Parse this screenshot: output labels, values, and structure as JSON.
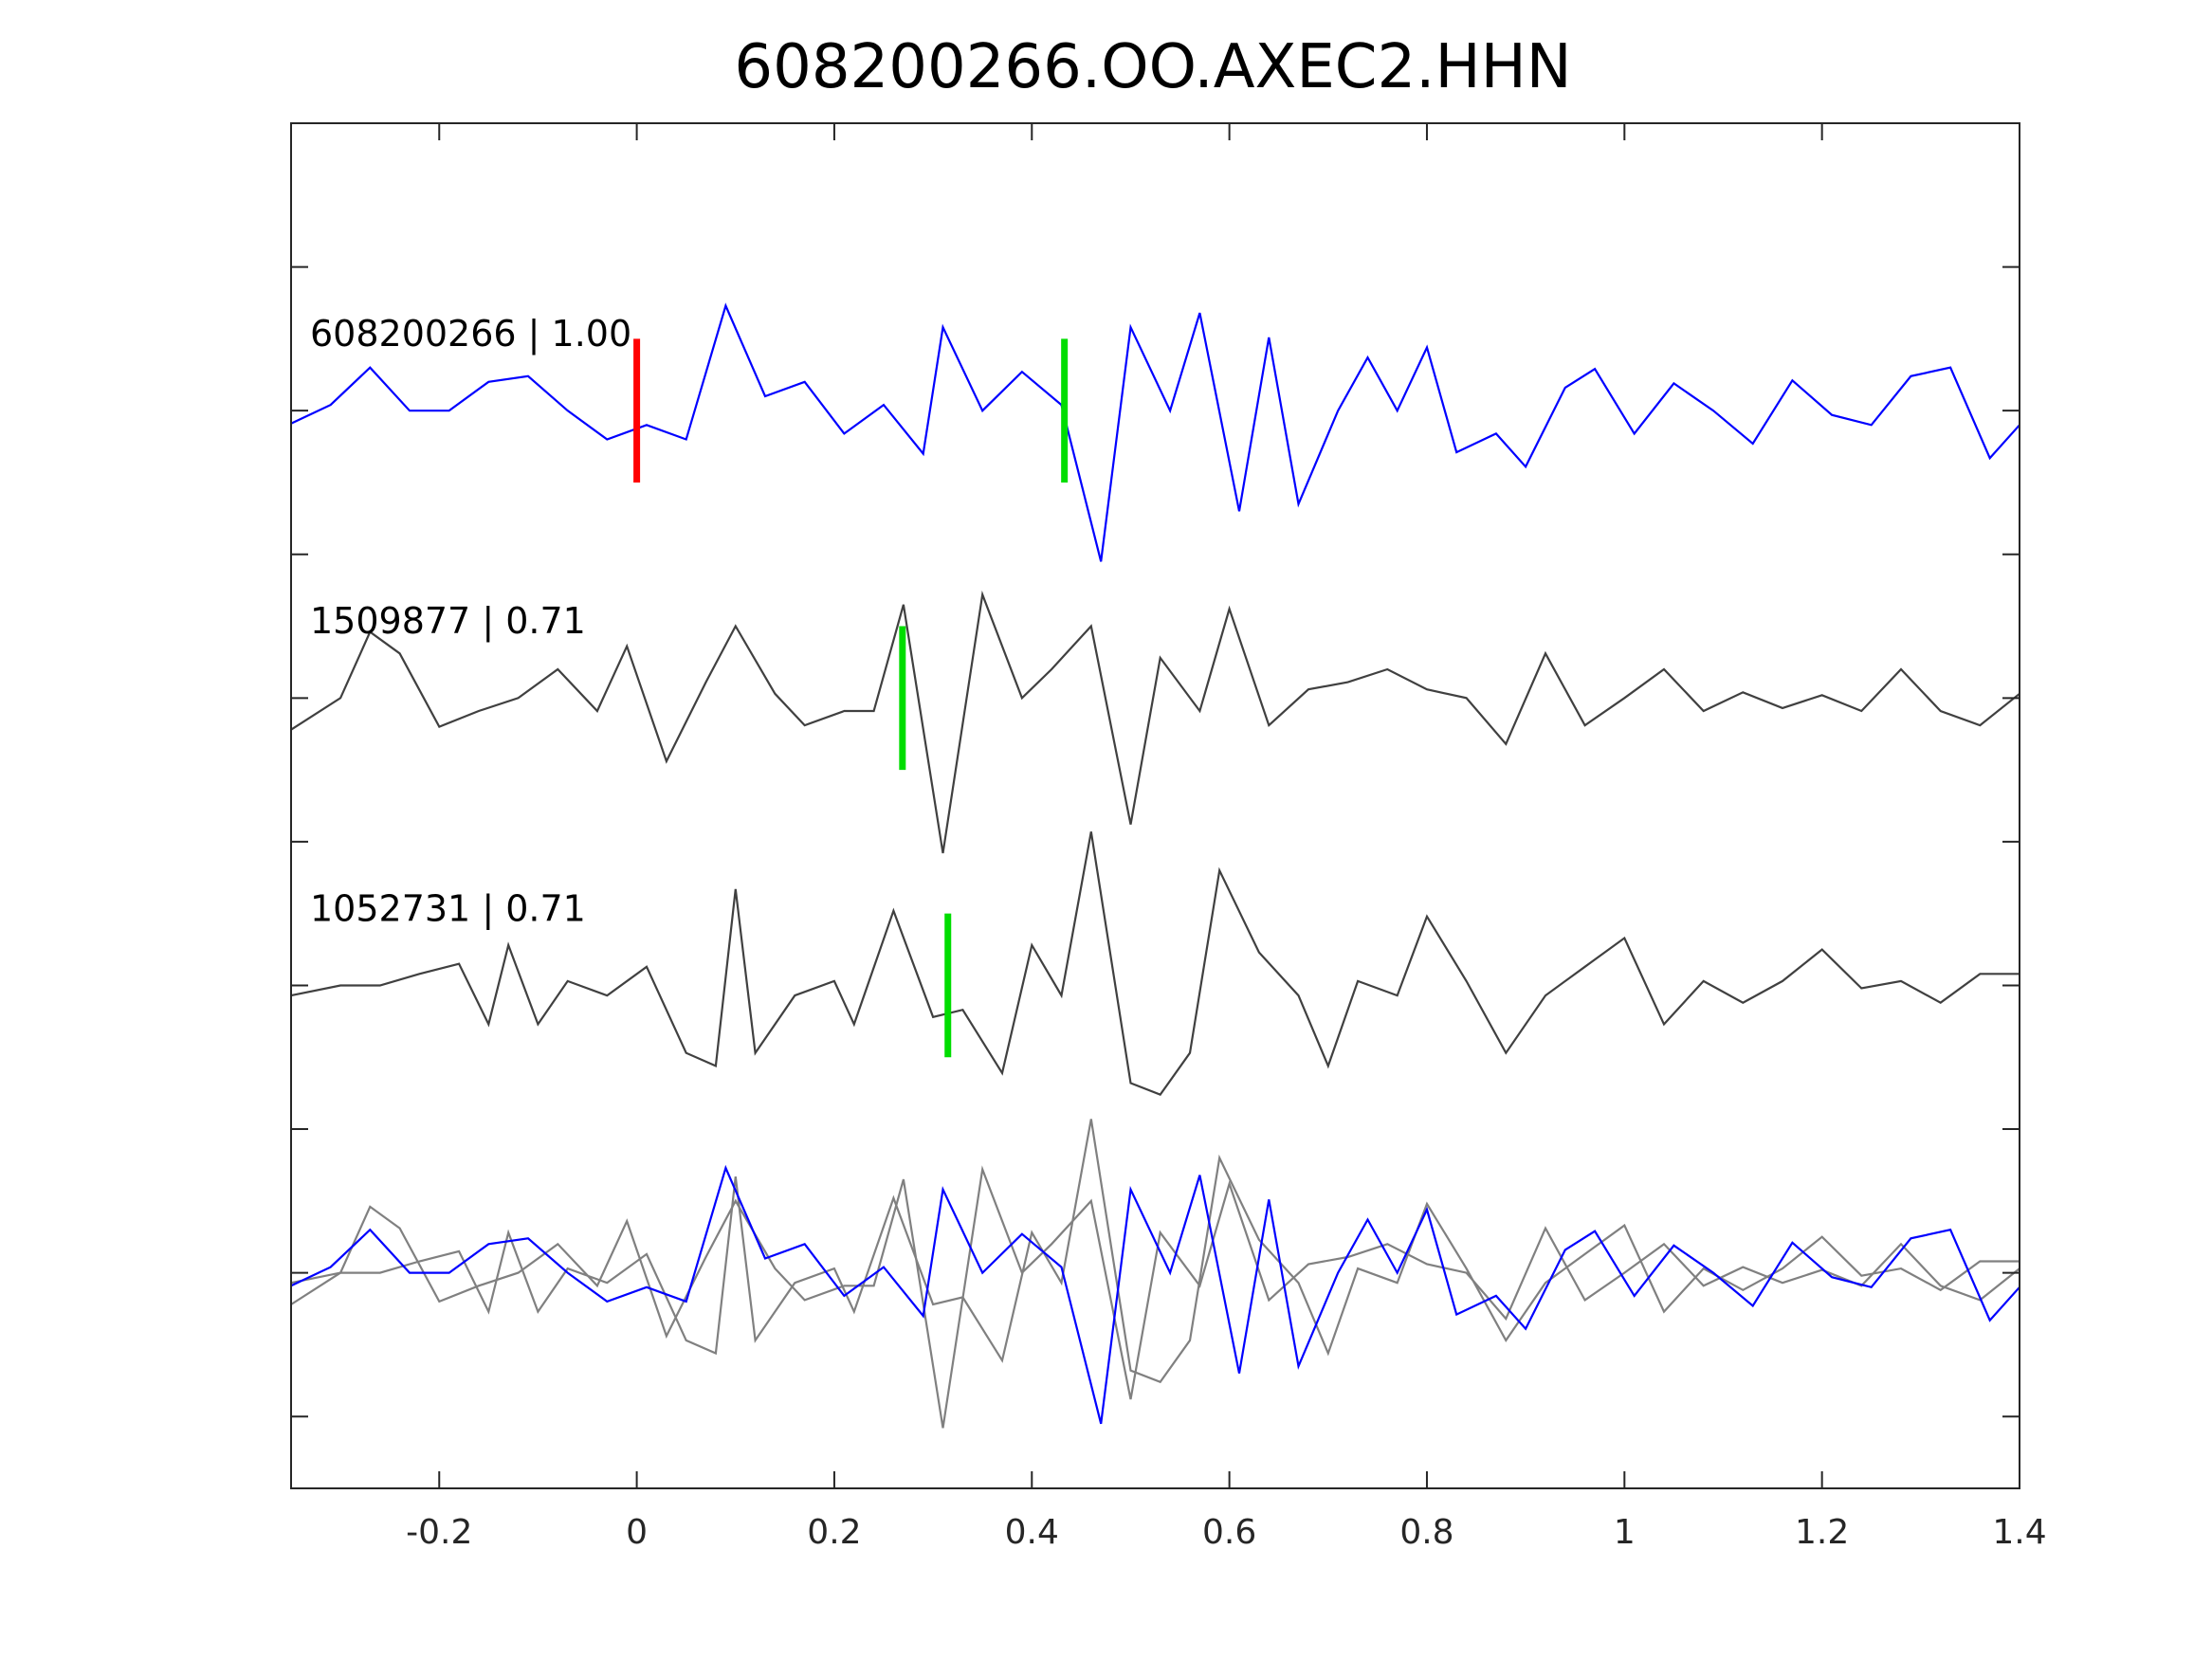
{
  "chart_data": {
    "type": "line",
    "title": "608200266.OO.AXEC2.HHN",
    "xlabel": "",
    "ylabel": "",
    "xlim": [
      -0.35,
      1.4
    ],
    "ylim": [
      -0.5,
      9
    ],
    "xticks": [
      -0.2,
      0,
      0.2,
      0.4,
      0.6,
      0.8,
      1,
      1.2,
      1.4
    ],
    "xtick_labels": [
      "-0.2",
      "0",
      "0.2",
      "0.4",
      "0.6",
      "0.8",
      "1",
      "1.2",
      "1.4"
    ],
    "yticks": [
      0,
      1,
      2,
      3,
      4,
      5,
      6,
      7,
      8
    ],
    "grid": false,
    "series": [
      {
        "name": "608200266",
        "label": "608200266 | 1.00",
        "color": "#0000ff",
        "offset": 7,
        "overlay": true,
        "x": [
          -0.35,
          -0.31,
          -0.27,
          -0.23,
          -0.19,
          -0.15,
          -0.11,
          -0.07,
          -0.03,
          0.01,
          0.05,
          0.09,
          0.13,
          0.17,
          0.21,
          0.25,
          0.29,
          0.31,
          0.35,
          0.39,
          0.43,
          0.47,
          0.5,
          0.54,
          0.57,
          0.61,
          0.64,
          0.67,
          0.71,
          0.74,
          0.77,
          0.8,
          0.83,
          0.87,
          0.9,
          0.94,
          0.97,
          1.01,
          1.05,
          1.09,
          1.13,
          1.17,
          1.21,
          1.25,
          1.29,
          1.33,
          1.37,
          1.4
        ],
        "y": [
          -0.09,
          0.04,
          0.3,
          0,
          0,
          0.2,
          0.24,
          0,
          -0.2,
          -0.1,
          -0.2,
          0.73,
          0.1,
          0.2,
          -0.16,
          0.04,
          -0.3,
          0.58,
          0,
          0.27,
          0.04,
          -1.05,
          0.58,
          0,
          0.68,
          -0.7,
          0.51,
          -0.65,
          0,
          0.37,
          0,
          0.44,
          -0.29,
          -0.16,
          -0.39,
          0.16,
          0.29,
          -0.16,
          0.19,
          0,
          -0.23,
          0.21,
          -0.03,
          -0.1,
          0.24,
          0.3,
          -0.33,
          -0.1
        ],
        "markers": [
          {
            "t": 0,
            "color": "#ff0000"
          },
          {
            "t": 0.433,
            "color": "#00dd00"
          }
        ]
      },
      {
        "name": "1509877",
        "label": "1509877 | 0.71",
        "color": "#404040",
        "overlay_color": "#808080",
        "offset": 5,
        "overlay": true,
        "x": [
          -0.35,
          -0.3,
          -0.27,
          -0.24,
          -0.2,
          -0.16,
          -0.12,
          -0.08,
          -0.04,
          -0.01,
          0.03,
          0.07,
          0.1,
          0.14,
          0.17,
          0.21,
          0.24,
          0.27,
          0.31,
          0.35,
          0.39,
          0.42,
          0.46,
          0.5,
          0.53,
          0.57,
          0.6,
          0.64,
          0.68,
          0.72,
          0.76,
          0.8,
          0.84,
          0.88,
          0.92,
          0.96,
          1.0,
          1.04,
          1.08,
          1.12,
          1.16,
          1.2,
          1.24,
          1.28,
          1.32,
          1.36,
          1.4
        ],
        "y": [
          -0.22,
          0,
          0.46,
          0.31,
          -0.2,
          -0.09,
          0,
          0.2,
          -0.09,
          0.36,
          -0.44,
          0.11,
          0.5,
          0.03,
          -0.19,
          -0.09,
          -0.09,
          0.65,
          -1.08,
          0.72,
          0,
          0.2,
          0.5,
          -0.88,
          0.28,
          -0.09,
          0.62,
          -0.19,
          0.06,
          0.11,
          0.2,
          0.06,
          0,
          -0.32,
          0.31,
          -0.19,
          0,
          0.2,
          -0.09,
          0.04,
          -0.07,
          0.02,
          -0.09,
          0.2,
          -0.09,
          -0.19,
          0.03
        ],
        "markers": [
          {
            "t": 0.269,
            "color": "#00dd00"
          }
        ]
      },
      {
        "name": "1052731",
        "label": "1052731 | 0.71",
        "color": "#404040",
        "overlay_color": "#808080",
        "offset": 3,
        "overlay": true,
        "x": [
          -0.35,
          -0.3,
          -0.26,
          -0.22,
          -0.18,
          -0.15,
          -0.13,
          -0.1,
          -0.07,
          -0.03,
          0.01,
          0.05,
          0.08,
          0.1,
          0.12,
          0.16,
          0.2,
          0.22,
          0.26,
          0.3,
          0.33,
          0.37,
          0.4,
          0.43,
          0.46,
          0.5,
          0.53,
          0.56,
          0.59,
          0.63,
          0.67,
          0.7,
          0.73,
          0.77,
          0.8,
          0.84,
          0.88,
          0.92,
          0.96,
          1.0,
          1.04,
          1.08,
          1.12,
          1.16,
          1.2,
          1.24,
          1.28,
          1.32,
          1.36,
          1.4
        ],
        "y": [
          -0.07,
          0,
          0,
          0.08,
          0.15,
          -0.27,
          0.28,
          -0.27,
          0.03,
          -0.07,
          0.13,
          -0.47,
          -0.56,
          0.67,
          -0.47,
          -0.07,
          0.03,
          -0.27,
          0.52,
          -0.22,
          -0.17,
          -0.61,
          0.28,
          -0.07,
          1.07,
          -0.68,
          -0.76,
          -0.47,
          0.8,
          0.23,
          -0.07,
          -0.56,
          0.03,
          -0.07,
          0.48,
          0.03,
          -0.47,
          -0.07,
          0.13,
          0.33,
          -0.27,
          0.03,
          -0.12,
          0.03,
          0.25,
          -0.02,
          0.03,
          -0.12,
          0.08,
          0.08
        ],
        "markers": [
          {
            "t": 0.315,
            "color": "#00dd00"
          }
        ]
      }
    ],
    "overlay_offset": 1
  }
}
